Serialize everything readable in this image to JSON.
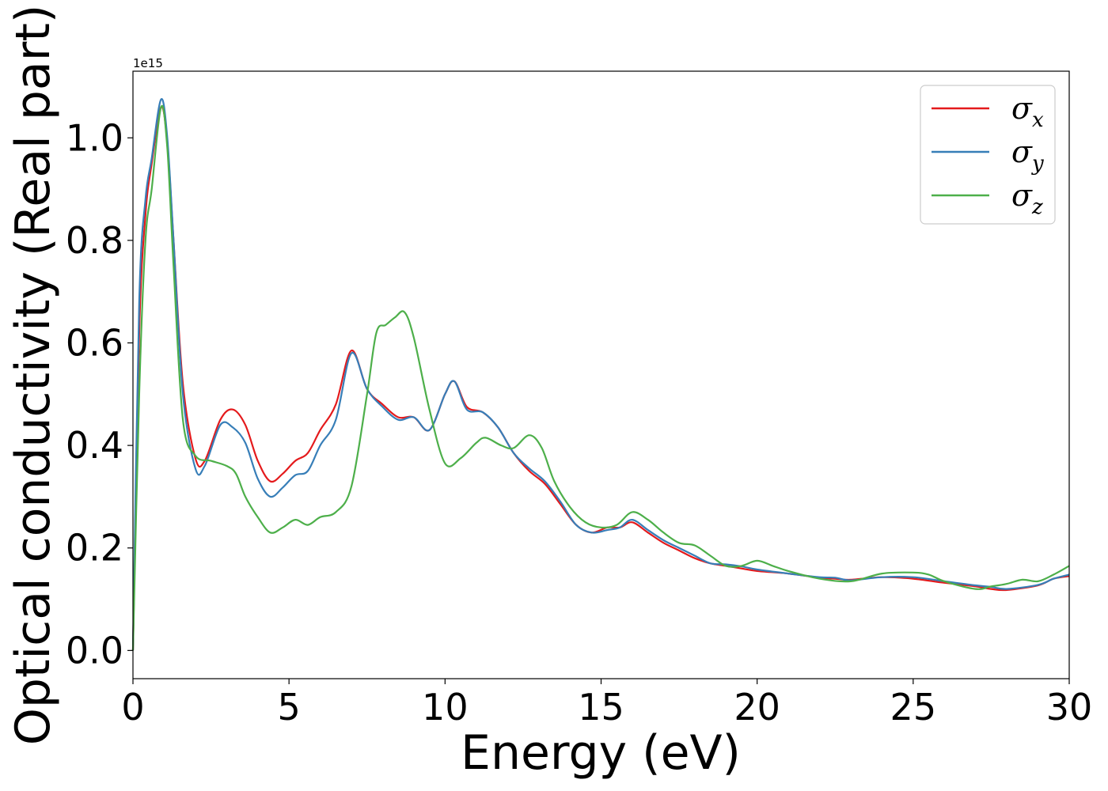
{
  "chart_data": {
    "type": "line",
    "title": "",
    "xlabel": "Energy (eV)",
    "ylabel": "Optical conductivity (Real part)",
    "offset_label": "1e15",
    "xlim": [
      0,
      30
    ],
    "ylim": [
      -0.055,
      1.13
    ],
    "x_ticks": [
      0,
      5,
      10,
      15,
      20,
      25,
      30
    ],
    "x_tick_labels": [
      "0",
      "5",
      "10",
      "15",
      "20",
      "25",
      "30"
    ],
    "y_ticks": [
      0.0,
      0.2,
      0.4,
      0.6,
      0.8,
      1.0
    ],
    "y_tick_labels": [
      "0.0",
      "0.2",
      "0.4",
      "0.6",
      "0.8",
      "1.0"
    ],
    "grid": false,
    "legend_position": "top-right",
    "series": [
      {
        "name": "σx",
        "symbol": "σ",
        "subscript": "x",
        "color": "#e41a1c",
        "x": [
          0,
          0.2,
          0.4,
          0.6,
          0.9,
          1.1,
          1.3,
          1.6,
          2.0,
          2.3,
          2.8,
          3.2,
          3.6,
          4.0,
          4.4,
          4.8,
          5.2,
          5.6,
          6.0,
          6.5,
          7.0,
          7.5,
          8.0,
          8.5,
          9.0,
          9.5,
          10.0,
          10.3,
          10.7,
          11.2,
          11.7,
          12.2,
          12.7,
          13.2,
          13.7,
          14.2,
          14.7,
          15.2,
          15.6,
          16.0,
          16.5,
          17.0,
          17.5,
          18.0,
          18.5,
          19.0,
          19.5,
          20.0,
          21.0,
          22.0,
          22.5,
          23.0,
          24.0,
          25.0,
          26.0,
          27.0,
          27.5,
          28.0,
          29.0,
          29.5,
          30.0
        ],
        "y": [
          0.0,
          0.62,
          0.85,
          0.95,
          1.06,
          0.99,
          0.8,
          0.52,
          0.375,
          0.37,
          0.45,
          0.47,
          0.44,
          0.37,
          0.33,
          0.345,
          0.37,
          0.385,
          0.43,
          0.48,
          0.585,
          0.51,
          0.48,
          0.455,
          0.455,
          0.43,
          0.5,
          0.525,
          0.475,
          0.465,
          0.435,
          0.385,
          0.35,
          0.325,
          0.285,
          0.245,
          0.23,
          0.24,
          0.24,
          0.25,
          0.23,
          0.21,
          0.195,
          0.18,
          0.17,
          0.165,
          0.16,
          0.155,
          0.15,
          0.142,
          0.14,
          0.138,
          0.143,
          0.14,
          0.132,
          0.125,
          0.12,
          0.118,
          0.127,
          0.14,
          0.145
        ]
      },
      {
        "name": "σy",
        "symbol": "σ",
        "subscript": "y",
        "color": "#377eb8",
        "x": [
          0,
          0.2,
          0.4,
          0.6,
          0.9,
          1.1,
          1.3,
          1.6,
          2.0,
          2.3,
          2.8,
          3.2,
          3.6,
          4.0,
          4.4,
          4.8,
          5.2,
          5.6,
          6.0,
          6.5,
          7.0,
          7.5,
          8.0,
          8.5,
          9.0,
          9.5,
          10.0,
          10.3,
          10.7,
          11.2,
          11.7,
          12.2,
          12.7,
          13.2,
          13.7,
          14.2,
          14.7,
          15.2,
          15.6,
          16.0,
          16.5,
          17.0,
          17.5,
          18.0,
          18.5,
          19.0,
          19.5,
          20.0,
          21.0,
          22.0,
          22.5,
          23.0,
          24.0,
          25.0,
          26.0,
          27.0,
          27.5,
          28.0,
          29.0,
          29.5,
          30.0
        ],
        "y": [
          0.0,
          0.68,
          0.88,
          0.96,
          1.075,
          1.0,
          0.8,
          0.5,
          0.355,
          0.36,
          0.44,
          0.435,
          0.405,
          0.335,
          0.3,
          0.318,
          0.342,
          0.35,
          0.4,
          0.45,
          0.58,
          0.51,
          0.475,
          0.45,
          0.455,
          0.43,
          0.5,
          0.525,
          0.47,
          0.465,
          0.435,
          0.385,
          0.355,
          0.33,
          0.29,
          0.245,
          0.23,
          0.235,
          0.24,
          0.255,
          0.235,
          0.215,
          0.2,
          0.185,
          0.17,
          0.168,
          0.164,
          0.158,
          0.15,
          0.143,
          0.142,
          0.137,
          0.143,
          0.143,
          0.135,
          0.127,
          0.124,
          0.12,
          0.128,
          0.14,
          0.148
        ]
      },
      {
        "name": "σz",
        "symbol": "σ",
        "subscript": "z",
        "color": "#4daf4a",
        "x": [
          0,
          0.2,
          0.4,
          0.6,
          0.9,
          1.1,
          1.3,
          1.6,
          2.0,
          2.5,
          3.0,
          3.3,
          3.6,
          4.0,
          4.4,
          4.8,
          5.2,
          5.6,
          6.0,
          6.5,
          7.0,
          7.5,
          7.8,
          8.1,
          8.4,
          8.7,
          9.0,
          9.5,
          10.0,
          10.5,
          11.0,
          11.3,
          11.8,
          12.2,
          12.7,
          13.1,
          13.5,
          14.0,
          14.5,
          15.0,
          15.5,
          16.0,
          16.5,
          17.0,
          17.5,
          18.0,
          18.5,
          19.0,
          19.5,
          20.0,
          20.5,
          21.0,
          22.0,
          23.0,
          24.0,
          25.0,
          25.5,
          26.0,
          27.0,
          27.5,
          28.0,
          28.5,
          29.0,
          29.5,
          30.0
        ],
        "y": [
          0.0,
          0.5,
          0.8,
          0.9,
          1.06,
          0.98,
          0.75,
          0.45,
          0.38,
          0.37,
          0.36,
          0.345,
          0.3,
          0.26,
          0.23,
          0.24,
          0.255,
          0.245,
          0.26,
          0.27,
          0.32,
          0.5,
          0.62,
          0.635,
          0.65,
          0.66,
          0.61,
          0.47,
          0.365,
          0.375,
          0.405,
          0.415,
          0.4,
          0.395,
          0.42,
          0.395,
          0.33,
          0.28,
          0.25,
          0.24,
          0.245,
          0.27,
          0.255,
          0.23,
          0.21,
          0.205,
          0.185,
          0.165,
          0.165,
          0.175,
          0.165,
          0.155,
          0.14,
          0.135,
          0.15,
          0.152,
          0.148,
          0.135,
          0.12,
          0.125,
          0.13,
          0.138,
          0.135,
          0.148,
          0.165
        ]
      }
    ]
  }
}
